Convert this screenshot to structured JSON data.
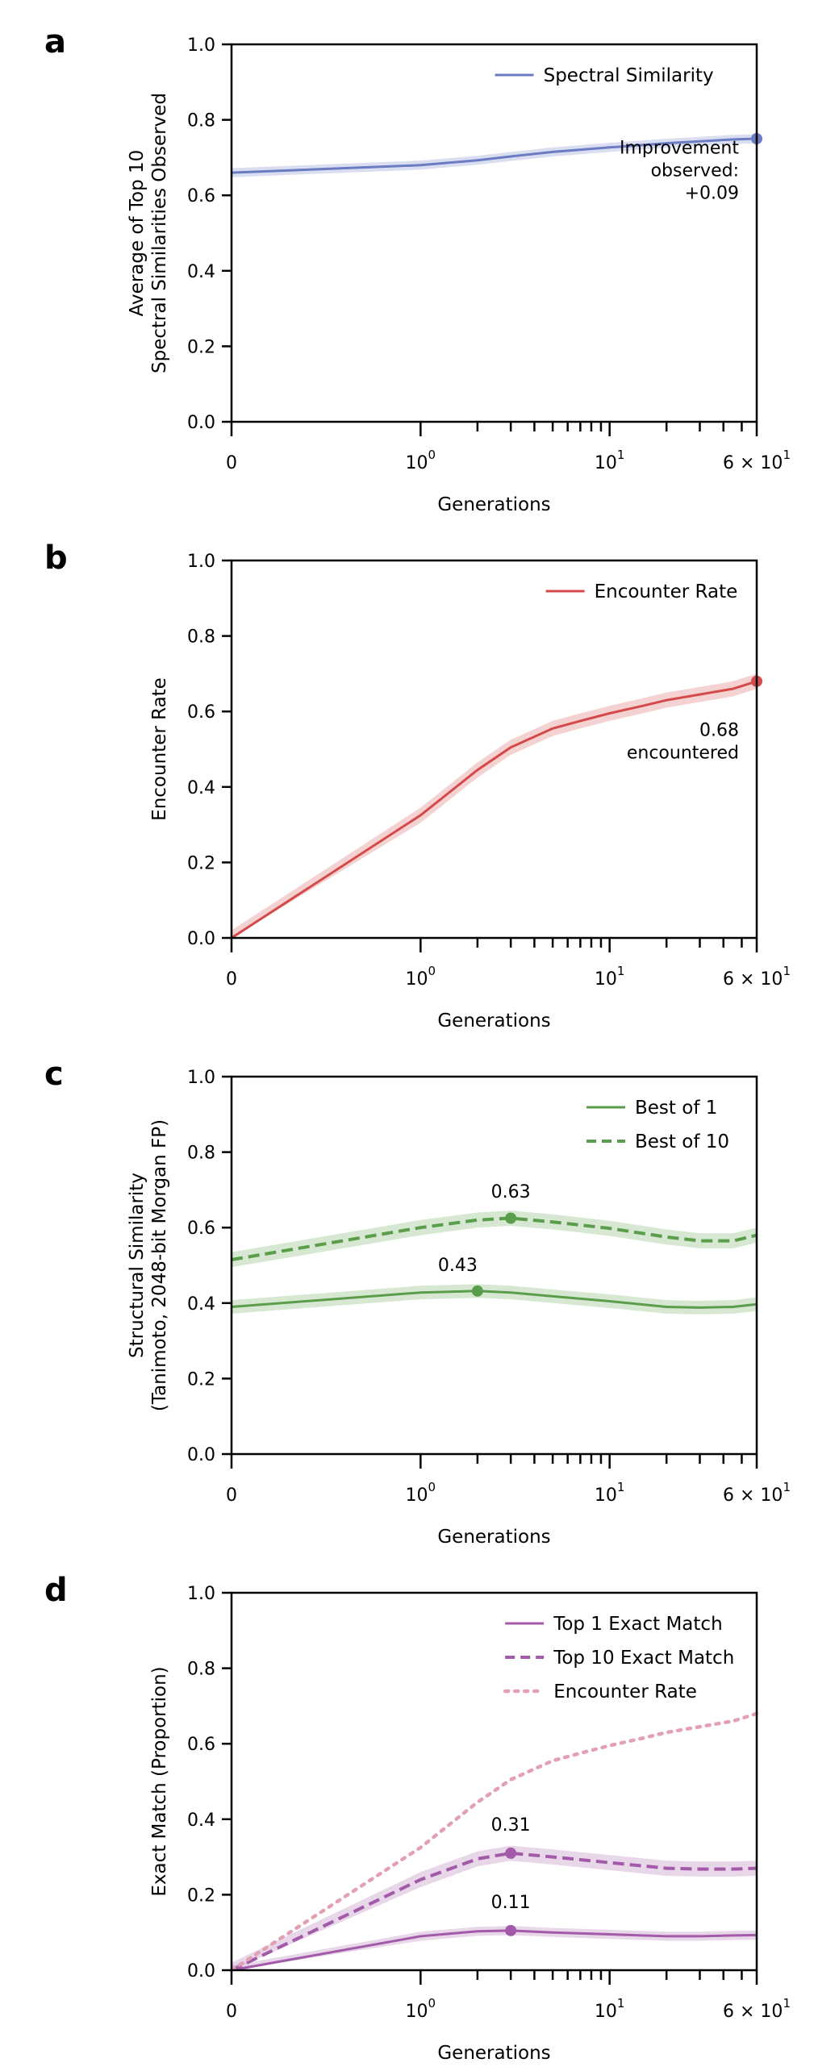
{
  "chart_data": [
    {
      "panel": "a",
      "type": "line",
      "xlabel": "Generations",
      "ylabel": [
        "Average of Top 10",
        "Spectral Similarities Observed"
      ],
      "xscale": "symlog",
      "xlim": [
        0,
        60
      ],
      "ylim": [
        0,
        1
      ],
      "yticks": [
        "0.0",
        "0.2",
        "0.4",
        "0.6",
        "0.8",
        "1.0"
      ],
      "xtick_labels": [
        {
          "base": "0",
          "exp": ""
        },
        {
          "base": "10",
          "exp": "0"
        },
        {
          "base": "10",
          "exp": "1"
        },
        {
          "base": "6 × 10",
          "exp": "1"
        }
      ],
      "legend": {
        "position": "top-right"
      },
      "series": [
        {
          "name": "Spectral Similarity",
          "color": "#6b7cc4",
          "style": "solid",
          "x": [
            0,
            1,
            2,
            3,
            5,
            10,
            20,
            30,
            45,
            60
          ],
          "y": [
            0.66,
            0.68,
            0.693,
            0.703,
            0.715,
            0.727,
            0.738,
            0.743,
            0.748,
            0.75
          ],
          "band": 0.012,
          "marker_index": 9
        }
      ],
      "annotations": [
        {
          "lines": [
            "Improvement",
            "observed:",
            "+0.09"
          ],
          "x": 60,
          "y": 0.71,
          "anchor": "end"
        }
      ]
    },
    {
      "panel": "b",
      "type": "line",
      "xlabel": "Generations",
      "ylabel": [
        "Encounter Rate"
      ],
      "xscale": "symlog",
      "xlim": [
        0,
        60
      ],
      "ylim": [
        0,
        1
      ],
      "yticks": [
        "0.0",
        "0.2",
        "0.4",
        "0.6",
        "0.8",
        "1.0"
      ],
      "xtick_labels": [
        {
          "base": "0",
          "exp": ""
        },
        {
          "base": "10",
          "exp": "0"
        },
        {
          "base": "10",
          "exp": "1"
        },
        {
          "base": "6 × 10",
          "exp": "1"
        }
      ],
      "legend": {
        "position": "top-right"
      },
      "series": [
        {
          "name": "Encounter Rate",
          "color": "#d44a4a",
          "style": "solid",
          "x": [
            0,
            1,
            2,
            3,
            5,
            7,
            10,
            15,
            20,
            30,
            45,
            60
          ],
          "y": [
            0.0,
            0.325,
            0.445,
            0.505,
            0.555,
            0.575,
            0.595,
            0.615,
            0.63,
            0.645,
            0.66,
            0.68
          ],
          "band": 0.02,
          "marker_index": 11
        }
      ],
      "annotations": [
        {
          "lines": [
            "0.68",
            "encountered"
          ],
          "x": 60,
          "y": 0.535,
          "anchor": "end"
        }
      ]
    },
    {
      "panel": "c",
      "type": "line",
      "xlabel": "Generations",
      "ylabel": [
        "Structural Similarity",
        "(Tanimoto, 2048-bit Morgan FP)"
      ],
      "xscale": "symlog",
      "xlim": [
        0,
        60
      ],
      "ylim": [
        0,
        1
      ],
      "yticks": [
        "0.0",
        "0.2",
        "0.4",
        "0.6",
        "0.8",
        "1.0"
      ],
      "xtick_labels": [
        {
          "base": "0",
          "exp": ""
        },
        {
          "base": "10",
          "exp": "0"
        },
        {
          "base": "10",
          "exp": "1"
        },
        {
          "base": "6 × 10",
          "exp": "1"
        }
      ],
      "legend": {
        "position": "top-right"
      },
      "series": [
        {
          "name": "Best of 1",
          "color": "#5a9e4b",
          "style": "solid",
          "x": [
            0,
            1,
            2,
            3,
            5,
            10,
            20,
            30,
            45,
            60
          ],
          "y": [
            0.39,
            0.428,
            0.432,
            0.428,
            0.418,
            0.405,
            0.39,
            0.388,
            0.39,
            0.397
          ],
          "band": 0.018,
          "marker_index": 2
        },
        {
          "name": "Best of 10",
          "color": "#5a9e4b",
          "style": "dashed",
          "x": [
            0,
            1,
            2,
            3,
            5,
            10,
            20,
            30,
            45,
            60
          ],
          "y": [
            0.515,
            0.6,
            0.62,
            0.625,
            0.615,
            0.598,
            0.575,
            0.565,
            0.565,
            0.58
          ],
          "band": 0.02,
          "marker_index": 3
        }
      ],
      "annotations": [
        {
          "lines": [
            "0.43"
          ],
          "x": 2,
          "y": 0.485,
          "anchor": "end"
        },
        {
          "lines": [
            "0.63"
          ],
          "x": 3,
          "y": 0.68,
          "anchor": "middle"
        }
      ]
    },
    {
      "panel": "d",
      "type": "line",
      "xlabel": "Generations",
      "ylabel": [
        "Exact Match (Proportion)"
      ],
      "xscale": "symlog",
      "xlim": [
        0,
        60
      ],
      "ylim": [
        0,
        1
      ],
      "yticks": [
        "0.0",
        "0.2",
        "0.4",
        "0.6",
        "0.8",
        "1.0"
      ],
      "xtick_labels": [
        {
          "base": "0",
          "exp": ""
        },
        {
          "base": "10",
          "exp": "0"
        },
        {
          "base": "10",
          "exp": "1"
        },
        {
          "base": "6 × 10",
          "exp": "1"
        }
      ],
      "legend": {
        "position": "top-right"
      },
      "series": [
        {
          "name": "Top 1 Exact Match",
          "color": "#a35aa8",
          "style": "solid",
          "x": [
            0,
            1,
            2,
            3,
            5,
            10,
            20,
            30,
            45,
            60
          ],
          "y": [
            0.0,
            0.09,
            0.103,
            0.105,
            0.1,
            0.095,
            0.09,
            0.09,
            0.092,
            0.093
          ],
          "band": 0.012,
          "marker_index": 3
        },
        {
          "name": "Top 10 Exact Match",
          "color": "#a35aa8",
          "style": "dashed",
          "x": [
            0,
            1,
            2,
            3,
            5,
            10,
            20,
            30,
            45,
            60
          ],
          "y": [
            0.0,
            0.24,
            0.295,
            0.31,
            0.3,
            0.285,
            0.27,
            0.268,
            0.268,
            0.27
          ],
          "band": 0.02,
          "marker_index": 3
        },
        {
          "name": "Encounter Rate",
          "color": "#e3a0b5",
          "style": "dotted",
          "x": [
            0,
            1,
            2,
            3,
            5,
            7,
            10,
            15,
            20,
            30,
            45,
            60
          ],
          "y": [
            0.0,
            0.325,
            0.445,
            0.505,
            0.555,
            0.575,
            0.595,
            0.615,
            0.63,
            0.645,
            0.66,
            0.68
          ],
          "band": 0,
          "marker_index": -1
        }
      ],
      "annotations": [
        {
          "lines": [
            "0.31"
          ],
          "x": 3,
          "y": 0.37,
          "anchor": "middle"
        },
        {
          "lines": [
            "0.11"
          ],
          "x": 3,
          "y": 0.165,
          "anchor": "middle"
        }
      ]
    }
  ]
}
